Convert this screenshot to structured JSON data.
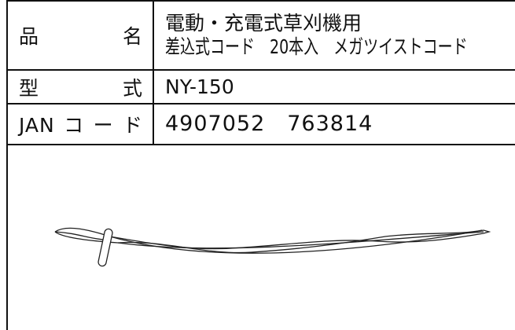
{
  "table": {
    "rows": [
      {
        "label": "品 名",
        "value": [
          "電動・充電式草刈機用",
          "差込式コード　20本入　メガツイストコード"
        ]
      },
      {
        "label": "型 式",
        "value": [
          "NY-150"
        ]
      },
      {
        "label": "JANコード",
        "value": [
          "4907052　763814"
        ]
      }
    ]
  }
}
